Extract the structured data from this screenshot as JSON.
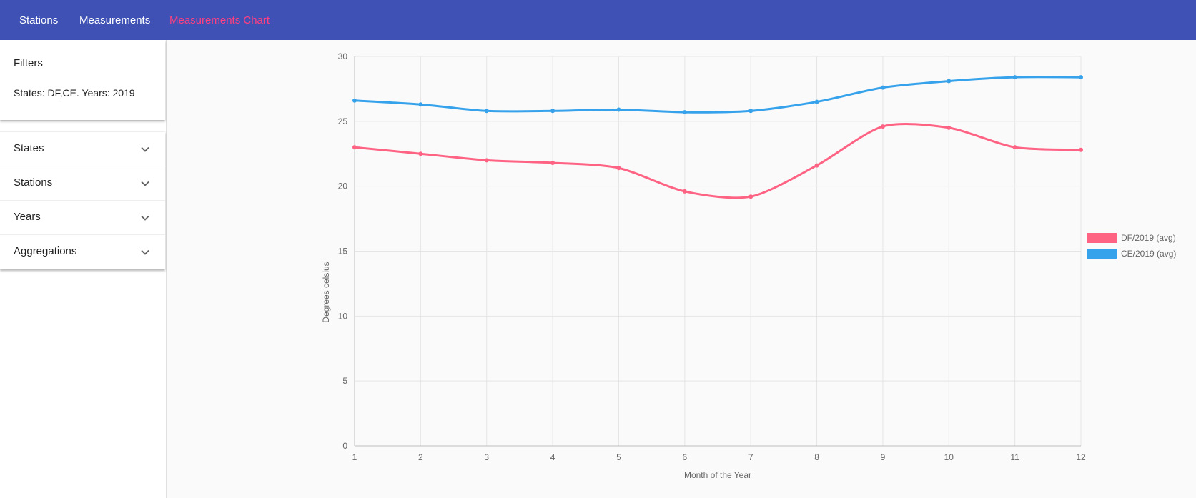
{
  "nav": {
    "links": [
      {
        "label": "Stations"
      },
      {
        "label": "Measurements"
      },
      {
        "label": "Measurements Chart"
      }
    ],
    "active_color": "#ff4081",
    "bar_color": "#3f51b5"
  },
  "sidebar": {
    "filters_title": "Filters",
    "filters_summary": "States: DF,CE. Years: 2019",
    "accordion": [
      {
        "label": "States",
        "icon": "chevron-down-icon"
      },
      {
        "label": "Stations",
        "icon": "chevron-down-icon"
      },
      {
        "label": "Years",
        "icon": "chevron-down-icon"
      },
      {
        "label": "Aggregations",
        "icon": "chevron-down-icon"
      }
    ]
  },
  "chart_data": {
    "type": "line",
    "x": [
      1,
      2,
      3,
      4,
      5,
      6,
      7,
      8,
      9,
      10,
      11,
      12
    ],
    "series": [
      {
        "name": "DF/2019 (avg)",
        "color": "#ff6384",
        "values": [
          23.0,
          22.5,
          22.0,
          21.8,
          21.4,
          19.6,
          19.2,
          21.6,
          24.6,
          24.5,
          23.0,
          22.8
        ]
      },
      {
        "name": "CE/2019 (avg)",
        "color": "#36a2eb",
        "values": [
          26.6,
          26.3,
          25.8,
          25.8,
          25.9,
          25.7,
          25.8,
          26.5,
          27.6,
          28.1,
          28.4,
          28.4
        ]
      }
    ],
    "xlabel": "Month of the Year",
    "ylabel": "Degrees celsius",
    "ylim": [
      0,
      30
    ],
    "yticks": [
      0,
      5,
      10,
      15,
      20,
      25,
      30
    ],
    "xticks": [
      1,
      2,
      3,
      4,
      5,
      6,
      7,
      8,
      9,
      10,
      11,
      12
    ],
    "grid": true,
    "legend": "right"
  }
}
